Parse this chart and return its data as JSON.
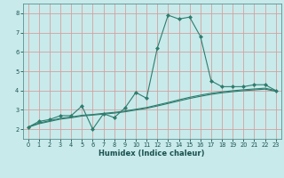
{
  "xlabel": "Humidex (Indice chaleur)",
  "background_color": "#c8eaea",
  "line_color": "#2e7d6e",
  "grid_color": "#d4a0a0",
  "xlim": [
    -0.5,
    23.5
  ],
  "ylim": [
    1.5,
    8.5
  ],
  "xticks": [
    0,
    1,
    2,
    3,
    4,
    5,
    6,
    7,
    8,
    9,
    10,
    11,
    12,
    13,
    14,
    15,
    16,
    17,
    18,
    19,
    20,
    21,
    22,
    23
  ],
  "yticks": [
    2,
    3,
    4,
    5,
    6,
    7,
    8
  ],
  "x_main": [
    0,
    1,
    2,
    3,
    4,
    5,
    6,
    7,
    8,
    9,
    10,
    11,
    12,
    13,
    14,
    15,
    16,
    17,
    18,
    19,
    20,
    21,
    22,
    23
  ],
  "y_main": [
    2.1,
    2.4,
    2.5,
    2.7,
    2.7,
    3.2,
    2.0,
    2.8,
    2.6,
    3.1,
    3.9,
    3.6,
    6.2,
    7.9,
    7.7,
    7.8,
    6.8,
    4.5,
    4.2,
    4.2,
    4.2,
    4.3,
    4.3,
    4.0
  ],
  "y_smooth1": [
    2.1,
    2.32,
    2.44,
    2.56,
    2.63,
    2.72,
    2.76,
    2.82,
    2.87,
    2.94,
    3.03,
    3.12,
    3.25,
    3.38,
    3.52,
    3.65,
    3.76,
    3.86,
    3.93,
    3.99,
    4.04,
    4.08,
    4.12,
    4.0
  ],
  "y_smooth2": [
    2.1,
    2.28,
    2.4,
    2.52,
    2.59,
    2.68,
    2.73,
    2.78,
    2.83,
    2.9,
    2.99,
    3.08,
    3.2,
    3.33,
    3.46,
    3.59,
    3.7,
    3.8,
    3.88,
    3.94,
    3.99,
    4.03,
    4.07,
    3.96
  ]
}
